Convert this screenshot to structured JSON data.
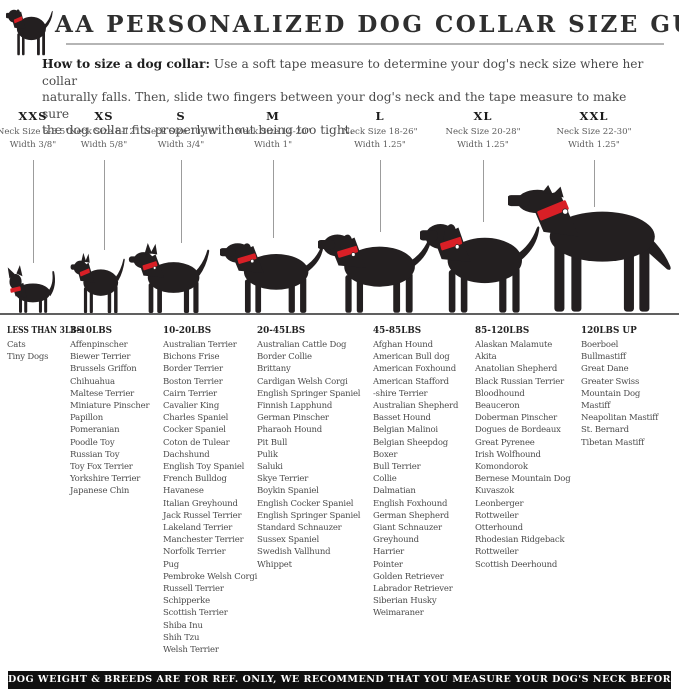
{
  "header": {
    "title": "AA PERSONALIZED DOG COLLAR SIZE GUIDE",
    "logo_icon": "dog-with-red-collar-icon"
  },
  "intro": {
    "lead": "How to size a dog collar:",
    "line1_rest": " Use a soft tape measure to determine your dog's neck size where her collar",
    "line2": "naturally falls. Then, slide two fingers between your dog's neck and the tape measure to make sure",
    "line3": "the dog collar fits properlywithout being too tight."
  },
  "sizes": [
    {
      "label": "XXS",
      "neck": "Neck Size 6-8.5\"",
      "width": "Width 3/8\""
    },
    {
      "label": "XS",
      "neck": "Neck Size 8-12\"",
      "width": "Width 5/8\""
    },
    {
      "label": "S",
      "neck": "Neck Size 10-16\"",
      "width": "Width 3/4\""
    },
    {
      "label": "M",
      "neck": "Neck Size 14-20\"",
      "width": "Width 1\""
    },
    {
      "label": "L",
      "neck": "Neck Size 18-26\"",
      "width": "Width 1.25\""
    },
    {
      "label": "XL",
      "neck": "Neck Size 20-28\"",
      "width": "Width 1.25\""
    },
    {
      "label": "XXL",
      "neck": "Neck Size 22-30\"",
      "width": "Width 1.25\""
    }
  ],
  "silhouettes": [
    "cat",
    "chihuahua",
    "terrier",
    "spaniel",
    "setter",
    "labrador",
    "great-dane"
  ],
  "weight_groups": [
    {
      "header": "LESS THAN 3LBS",
      "breeds": [
        "Cats",
        "Tiny Dogs"
      ]
    },
    {
      "header": "3-10LBS",
      "breeds": [
        "Affenpinscher",
        "Biewer Terrier",
        "Brussels Griffon",
        "Chihuahua",
        "Maltese Terrier",
        "Miniature Pinscher",
        "Papillon",
        "Pomeranian",
        "Poodle Toy",
        "Russian Toy",
        "Toy Fox Terrier",
        "Yorkshire Terrier",
        "Japanese Chin"
      ]
    },
    {
      "header": "10-20LBS",
      "breeds": [
        "Australian Terrier",
        "Bichons Frise",
        "Border Terrier",
        "Boston Terrier",
        "Cairn Terrier",
        "Cavalier King",
        "Charles Spaniel",
        "Cocker Spaniel",
        "Coton de Tulear",
        "Dachshund",
        "English Toy Spaniel",
        "French Bulldog",
        "Havanese",
        "Italian Greyhound",
        "Jack Russel Terrier",
        "Lakeland Terrier",
        "Manchester Terrier",
        "Norfolk Terrier",
        "Pug",
        "Pembroke Welsh Corgi",
        "Russell Terrier",
        "Schipperke",
        "Scottish Terrier",
        "Shiba Inu",
        "Shih Tzu",
        "Welsh Terrier"
      ]
    },
    {
      "header": "20-45LBS",
      "breeds": [
        "Australian Cattle Dog",
        "Border Collie",
        "Brittany",
        "Cardigan Welsh Corgi",
        "English Springer Spaniel",
        "Finnish Lapphund",
        "German Pinscher",
        "Pharaoh Hound",
        "Pit Bull",
        "Pulik",
        "Saluki",
        "Skye Terrier",
        "Boykin Spaniel",
        "English Cocker Spaniel",
        "English Springer Spaniel",
        "Standard Schnauzer",
        "Sussex Spaniel",
        "Swedish Vallhund",
        "Whippet"
      ]
    },
    {
      "header": "45-85LBS",
      "breeds": [
        "Afghan Hound",
        "American Bull dog",
        "American Foxhound",
        "American Stafford",
        "-shire Terrier",
        "Australian Shepherd",
        "Basset Hound",
        "Belgian Malinoi",
        "Belgian Sheepdog",
        "Boxer",
        "Bull Terrier",
        "Collie",
        "Dalmatian",
        "English Foxhound",
        "German Shepherd",
        "Giant Schnauzer",
        "Greyhound",
        "Harrier",
        "Pointer",
        "Golden Retriever",
        "Labrador Retriever",
        "Siberian Husky",
        "Weimaraner"
      ]
    },
    {
      "header": "85-120LBS",
      "breeds": [
        "Alaskan Malamute",
        "Akita",
        "Anatolian Shepherd",
        "Black Russian Terrier",
        "Bloodhound",
        "Beauceron",
        "Doberman Pinscher",
        "Dogues de Bordeaux",
        "Great Pyrenee",
        "Irish Wolfhound",
        "Komondorok",
        "Bernese Mountain Dog",
        "Kuvaszok",
        "Leonberger",
        "Rottweiler",
        "Otterhound",
        "Rhodesian Ridgeback",
        "Rottweiler",
        "Scottish Deerhound"
      ]
    },
    {
      "header": "120LBS UP",
      "breeds": [
        "Boerboel",
        "Bullmastiff",
        "Great Dane",
        "Greater Swiss",
        "Mountain Dog",
        "Mastiff",
        "Neapolitan Mastiff",
        "St. Bernard",
        "Tibetan Mastiff"
      ]
    }
  ],
  "footer": {
    "text": "DOG WEIGHT & BREEDS ARE FOR REF. ONLY, WE RECOMMEND THAT YOU MEASURE YOUR DOG'S NECK BEFORE PURCHASE"
  },
  "colors": {
    "collar_red": "#d81f26",
    "silhouette_black": "#231f20",
    "footer_bg": "#101010",
    "line_gray": "#9c9c9c"
  }
}
